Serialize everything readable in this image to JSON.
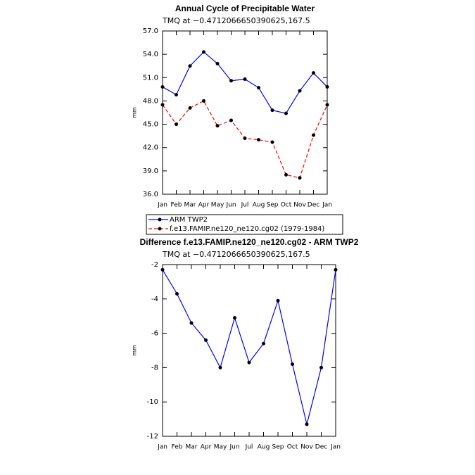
{
  "chart_data": [
    {
      "type": "line",
      "title": "Annual Cycle of Precipitable Water",
      "subtitle": "TMQ at −0.4712066650390625,167.5",
      "ylabel": "mm",
      "categories": [
        "Jan",
        "Feb",
        "Mar",
        "Apr",
        "May",
        "Jun",
        "Jul",
        "Aug",
        "Sep",
        "Oct",
        "Nov",
        "Dec",
        "Jan"
      ],
      "series": [
        {
          "name": "ARM TWP2",
          "color": "#0000ff",
          "linestyle": "solid",
          "values": [
            49.8,
            48.8,
            52.5,
            54.3,
            52.8,
            50.6,
            50.8,
            49.7,
            46.8,
            46.4,
            49.3,
            51.6,
            49.8
          ]
        },
        {
          "name": "f.e13.FAMIP.ne120_ne120.cg02 (1979-1984)",
          "color": "#ff0000",
          "linestyle": "dashed",
          "values": [
            47.5,
            45.0,
            47.1,
            48.0,
            44.8,
            45.5,
            43.2,
            43.0,
            42.7,
            38.5,
            38.1,
            43.6,
            47.5
          ]
        }
      ],
      "ylim": [
        36,
        57
      ],
      "yticks": [
        {
          "value": 36,
          "label": "36.0"
        },
        {
          "value": 39,
          "label": "39.0"
        },
        {
          "value": 42,
          "label": "42.0"
        },
        {
          "value": 45,
          "label": "45.0"
        },
        {
          "value": 48,
          "label": "48.0"
        },
        {
          "value": 51,
          "label": "51.0"
        },
        {
          "value": 54,
          "label": "54.0"
        },
        {
          "value": 57,
          "label": "57.0"
        }
      ],
      "legend": "bottom"
    },
    {
      "type": "line",
      "title": "Difference f.e13.FAMIP.ne120_ne120.cg02 - ARM TWP2",
      "subtitle": "TMQ at −0.4712066650390625,167.5",
      "ylabel": "mm",
      "categories": [
        "Jan",
        "Feb",
        "Mar",
        "Apr",
        "May",
        "Jun",
        "Jul",
        "Aug",
        "Sep",
        "Oct",
        "Nov",
        "Dec",
        "Jan"
      ],
      "series": [
        {
          "color": "#0000ff",
          "linestyle": "solid",
          "values": [
            -2.3,
            -3.7,
            -5.4,
            -6.4,
            -8.0,
            -5.1,
            -7.7,
            -6.6,
            -4.1,
            -7.8,
            -11.3,
            -8.0,
            -2.3
          ]
        }
      ],
      "ylim": [
        -12,
        -2
      ],
      "yticks": [
        -12,
        -10,
        -8,
        -6,
        -4,
        -2
      ]
    }
  ]
}
